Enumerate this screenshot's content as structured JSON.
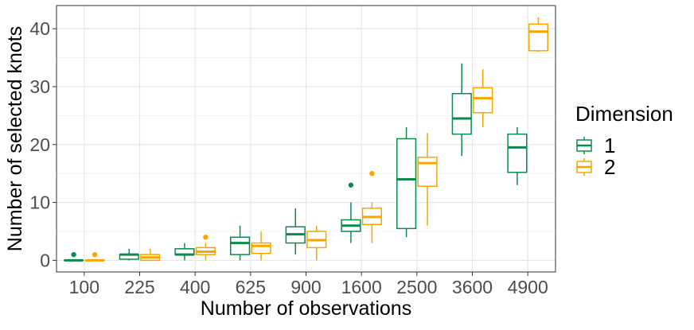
{
  "chart_data": {
    "type": "boxplot",
    "title": "",
    "xlabel": "Number of observations",
    "ylabel": "Number of selected knots",
    "categories": [
      "100",
      "225",
      "400",
      "625",
      "900",
      "1600",
      "2500",
      "3600",
      "4900"
    ],
    "ylim": [
      -2,
      44
    ],
    "yticks": [
      0,
      10,
      20,
      30,
      40
    ],
    "grid": true,
    "legend": {
      "title": "Dimension",
      "position": "right"
    },
    "series": [
      {
        "name": "1",
        "color": "#0f8a4f",
        "boxes": [
          {
            "min": 0,
            "q1": 0,
            "median": 0,
            "q3": 0,
            "max": 0,
            "outliers": [
              1
            ]
          },
          {
            "min": 0,
            "q1": 0.2,
            "median": 1,
            "q3": 1,
            "max": 2,
            "outliers": []
          },
          {
            "min": 0,
            "q1": 1,
            "median": 1,
            "q3": 2,
            "max": 3,
            "outliers": []
          },
          {
            "min": 0,
            "q1": 1,
            "median": 3,
            "q3": 4,
            "max": 6,
            "outliers": []
          },
          {
            "min": 1,
            "q1": 3,
            "median": 4.5,
            "q3": 5.8,
            "max": 9,
            "outliers": []
          },
          {
            "min": 3,
            "q1": 5,
            "median": 6,
            "q3": 7,
            "max": 10,
            "outliers": [
              13
            ]
          },
          {
            "min": 4,
            "q1": 5.5,
            "median": 14,
            "q3": 21,
            "max": 23,
            "outliers": []
          },
          {
            "min": 18,
            "q1": 21.8,
            "median": 24.5,
            "q3": 28.8,
            "max": 34,
            "outliers": []
          },
          {
            "min": 13,
            "q1": 15.2,
            "median": 19.5,
            "q3": 21.8,
            "max": 23,
            "outliers": []
          }
        ]
      },
      {
        "name": "2",
        "color": "#f7a600",
        "boxes": [
          {
            "min": 0,
            "q1": 0,
            "median": 0,
            "q3": 0,
            "max": 0,
            "outliers": [
              1
            ]
          },
          {
            "min": 0,
            "q1": 0,
            "median": 0.5,
            "q3": 1,
            "max": 2,
            "outliers": []
          },
          {
            "min": 0,
            "q1": 1,
            "median": 1.5,
            "q3": 2.2,
            "max": 3,
            "outliers": [
              4
            ]
          },
          {
            "min": 0,
            "q1": 1.2,
            "median": 2.5,
            "q3": 3,
            "max": 5,
            "outliers": []
          },
          {
            "min": 0,
            "q1": 2.2,
            "median": 3.5,
            "q3": 5,
            "max": 6,
            "outliers": []
          },
          {
            "min": 3,
            "q1": 6.2,
            "median": 7.5,
            "q3": 9,
            "max": 10,
            "outliers": [
              15
            ]
          },
          {
            "min": 6,
            "q1": 12.8,
            "median": 16.8,
            "q3": 17.8,
            "max": 22,
            "outliers": []
          },
          {
            "min": 23,
            "q1": 25.5,
            "median": 28,
            "q3": 29.8,
            "max": 33,
            "outliers": []
          },
          {
            "min": 36,
            "q1": 36.2,
            "median": 39.5,
            "q3": 40.8,
            "max": 42,
            "outliers": []
          }
        ]
      }
    ]
  }
}
